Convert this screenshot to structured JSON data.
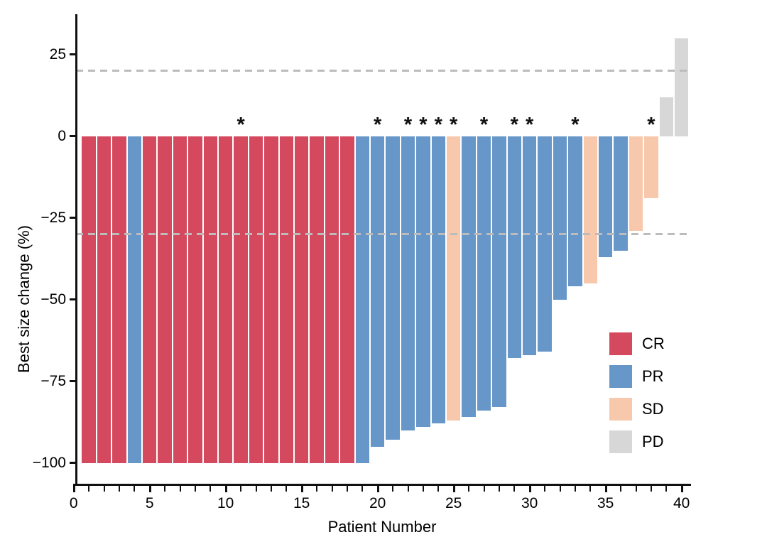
{
  "axes": {
    "y_title": "Best size change (%)",
    "x_title": "Patient Number",
    "y_ticks": [
      {
        "value": 25,
        "label": "25"
      },
      {
        "value": 0,
        "label": "0"
      },
      {
        "value": -25,
        "label": "−25"
      },
      {
        "value": -50,
        "label": "−50"
      },
      {
        "value": -75,
        "label": "−75"
      },
      {
        "value": -100,
        "label": "−100"
      }
    ],
    "x_major_ticks": [
      {
        "value": 0,
        "label": "0"
      },
      {
        "value": 5,
        "label": "5"
      },
      {
        "value": 10,
        "label": "10"
      },
      {
        "value": 15,
        "label": "15"
      },
      {
        "value": 20,
        "label": "20"
      },
      {
        "value": 25,
        "label": "25"
      },
      {
        "value": 30,
        "label": "30"
      },
      {
        "value": 35,
        "label": "35"
      },
      {
        "value": 40,
        "label": "40"
      }
    ],
    "x_minor_step": 1
  },
  "legend": {
    "items": [
      {
        "label": "CR",
        "color": "#D5495E"
      },
      {
        "label": "PR",
        "color": "#6797C8"
      },
      {
        "label": "SD",
        "color": "#F8C8AC"
      },
      {
        "label": "PD",
        "color": "#D7D7D7"
      }
    ]
  },
  "chart_data": {
    "type": "bar",
    "title": "",
    "xlabel": "Patient Number",
    "ylabel": "Best size change (%)",
    "xlim": [
      0,
      40.6
    ],
    "ylim": [
      -107,
      37
    ],
    "grid": false,
    "legend_position": "right-middle",
    "reference_lines_y": [
      20,
      -30
    ],
    "reference_line_color": "#BCBCBC",
    "reference_line_style": "dashed",
    "asterisk_patients": [
      11,
      20,
      22,
      23,
      24,
      25,
      27,
      29,
      30,
      33,
      38
    ],
    "points": [
      {
        "patient": 1,
        "value": -100,
        "response": "CR",
        "asterisk": false
      },
      {
        "patient": 2,
        "value": -100,
        "response": "CR",
        "asterisk": false
      },
      {
        "patient": 3,
        "value": -100,
        "response": "CR",
        "asterisk": false
      },
      {
        "patient": 4,
        "value": -100,
        "response": "PR",
        "asterisk": false
      },
      {
        "patient": 5,
        "value": -100,
        "response": "CR",
        "asterisk": false
      },
      {
        "patient": 6,
        "value": -100,
        "response": "CR",
        "asterisk": false
      },
      {
        "patient": 7,
        "value": -100,
        "response": "CR",
        "asterisk": false
      },
      {
        "patient": 8,
        "value": -100,
        "response": "CR",
        "asterisk": false
      },
      {
        "patient": 9,
        "value": -100,
        "response": "CR",
        "asterisk": false
      },
      {
        "patient": 10,
        "value": -100,
        "response": "CR",
        "asterisk": false
      },
      {
        "patient": 11,
        "value": -100,
        "response": "CR",
        "asterisk": true
      },
      {
        "patient": 12,
        "value": -100,
        "response": "CR",
        "asterisk": false
      },
      {
        "patient": 13,
        "value": -100,
        "response": "CR",
        "asterisk": false
      },
      {
        "patient": 14,
        "value": -100,
        "response": "CR",
        "asterisk": false
      },
      {
        "patient": 15,
        "value": -100,
        "response": "CR",
        "asterisk": false
      },
      {
        "patient": 16,
        "value": -100,
        "response": "CR",
        "asterisk": false
      },
      {
        "patient": 17,
        "value": -100,
        "response": "CR",
        "asterisk": false
      },
      {
        "patient": 18,
        "value": -100,
        "response": "CR",
        "asterisk": false
      },
      {
        "patient": 19,
        "value": -100,
        "response": "PR",
        "asterisk": false
      },
      {
        "patient": 20,
        "value": -95,
        "response": "PR",
        "asterisk": true
      },
      {
        "patient": 21,
        "value": -93,
        "response": "PR",
        "asterisk": false
      },
      {
        "patient": 22,
        "value": -90,
        "response": "PR",
        "asterisk": true
      },
      {
        "patient": 23,
        "value": -89,
        "response": "PR",
        "asterisk": true
      },
      {
        "patient": 24,
        "value": -88,
        "response": "PR",
        "asterisk": true
      },
      {
        "patient": 25,
        "value": -87,
        "response": "SD",
        "asterisk": true
      },
      {
        "patient": 26,
        "value": -86,
        "response": "PR",
        "asterisk": false
      },
      {
        "patient": 27,
        "value": -84,
        "response": "PR",
        "asterisk": true
      },
      {
        "patient": 28,
        "value": -83,
        "response": "PR",
        "asterisk": false
      },
      {
        "patient": 29,
        "value": -68,
        "response": "PR",
        "asterisk": true
      },
      {
        "patient": 30,
        "value": -67,
        "response": "PR",
        "asterisk": true
      },
      {
        "patient": 31,
        "value": -66,
        "response": "PR",
        "asterisk": false
      },
      {
        "patient": 32,
        "value": -50,
        "response": "PR",
        "asterisk": false
      },
      {
        "patient": 33,
        "value": -46,
        "response": "PR",
        "asterisk": true
      },
      {
        "patient": 34,
        "value": -45,
        "response": "SD",
        "asterisk": false
      },
      {
        "patient": 35,
        "value": -37,
        "response": "PR",
        "asterisk": false
      },
      {
        "patient": 36,
        "value": -35,
        "response": "PR",
        "asterisk": false
      },
      {
        "patient": 37,
        "value": -29,
        "response": "SD",
        "asterisk": false
      },
      {
        "patient": 38,
        "value": -19,
        "response": "SD",
        "asterisk": true
      },
      {
        "patient": 39,
        "value": 12,
        "response": "PD",
        "asterisk": false
      },
      {
        "patient": 40,
        "value": 30,
        "response": "PD",
        "asterisk": false
      }
    ]
  }
}
